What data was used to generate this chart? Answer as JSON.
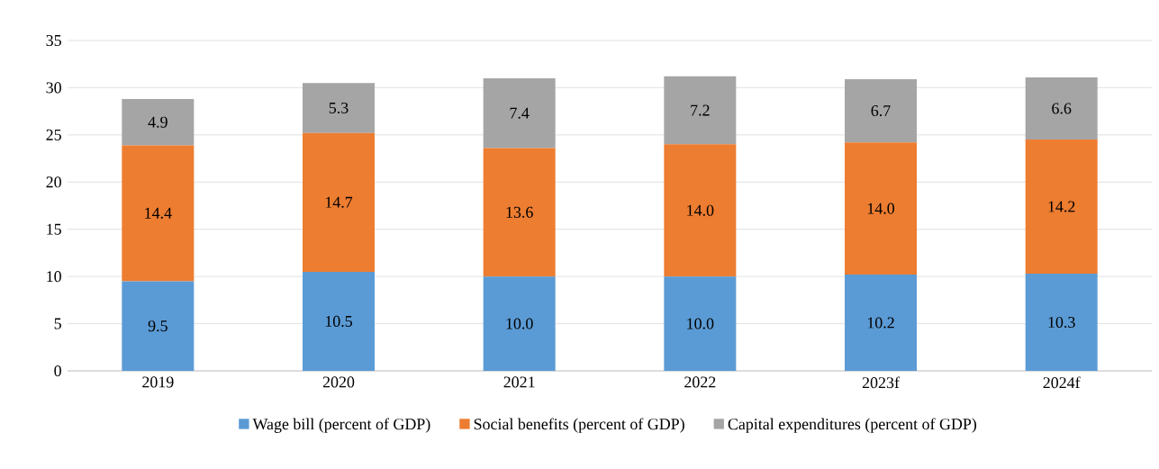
{
  "chart_data": {
    "type": "bar",
    "stacked": true,
    "categories": [
      "2019",
      "2020",
      "2021",
      "2022",
      "2023f",
      "2024f"
    ],
    "series": [
      {
        "name": "Wage bill (percent of GDP)",
        "color": "#5b9bd5",
        "values": [
          9.5,
          10.5,
          10.0,
          10.0,
          10.2,
          10.3
        ],
        "value_labels": [
          "9.5",
          "10.5",
          "10.0",
          "10.0",
          "10.2",
          "10.3"
        ]
      },
      {
        "name": "Social benefits (percent of GDP)",
        "color": "#ed7d31",
        "values": [
          14.4,
          14.7,
          13.6,
          14.0,
          14.0,
          14.2
        ],
        "value_labels": [
          "14.4",
          "14.7",
          "13.6",
          "14.0",
          "14.0",
          "14.2"
        ]
      },
      {
        "name": "Capital expenditures (percent of GDP)",
        "color": "#a5a5a5",
        "values": [
          4.9,
          5.3,
          7.4,
          7.2,
          6.7,
          6.6
        ],
        "value_labels": [
          "4.9",
          "5.3",
          "7.4",
          "7.2",
          "6.7",
          "6.6"
        ]
      }
    ],
    "ylim": [
      0,
      35
    ],
    "yticks": [
      0,
      5,
      10,
      15,
      20,
      25,
      30,
      35
    ],
    "grid": "y",
    "legend": "bottom"
  }
}
